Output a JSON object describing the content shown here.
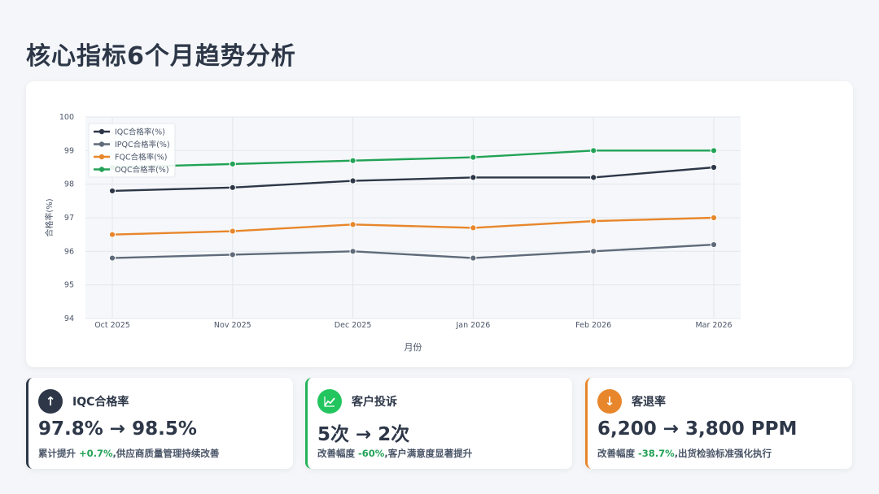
{
  "page": {
    "title": "核心指标6个月趋势分析"
  },
  "chart_data": {
    "type": "line",
    "x": [
      "Oct 2025",
      "Nov 2025",
      "Dec 2025",
      "Jan 2026",
      "Feb 2026",
      "Mar 2026"
    ],
    "series": [
      {
        "name": "IQC合格率(%)",
        "values": [
          97.8,
          97.9,
          98.1,
          98.2,
          98.2,
          98.5
        ],
        "color": "#2d3748"
      },
      {
        "name": "IPQC合格率(%)",
        "values": [
          95.8,
          95.9,
          96.0,
          95.8,
          96.0,
          96.2
        ],
        "color": "#5f6b7a"
      },
      {
        "name": "FQC合格率(%)",
        "values": [
          96.5,
          96.6,
          96.8,
          96.7,
          96.9,
          97.0
        ],
        "color": "#e8862b"
      },
      {
        "name": "OQC合格率(%)",
        "values": [
          98.5,
          98.6,
          98.7,
          98.8,
          99.0,
          99.0
        ],
        "color": "#22a356"
      }
    ],
    "xlabel": "月份",
    "ylabel": "合格率(%)",
    "ylim": [
      94,
      100
    ],
    "yticks": [
      "94",
      "95",
      "96",
      "97",
      "98",
      "99",
      "100"
    ],
    "grid": true,
    "legend": "top-left"
  },
  "kpis": [
    {
      "icon": "arrow-up-icon",
      "glyph": "↑",
      "label": "IQC合格率",
      "value": "97.8% → 98.5%",
      "note_prefix": "累计提升 ",
      "note_highlight": "+0.7%",
      "note_suffix": ",供应商质量管理持续改善"
    },
    {
      "icon": "chart-line-icon",
      "glyph": "📈",
      "label": "客户投诉",
      "value": "5次 → 2次",
      "note_prefix": "改善幅度 ",
      "note_highlight": "-60%",
      "note_suffix": ",客户满意度显著提升"
    },
    {
      "icon": "arrow-down-icon",
      "glyph": "↓",
      "label": "客退率",
      "value": "6,200 → 3,800 PPM",
      "note_prefix": "改善幅度 ",
      "note_highlight": "-38.7%",
      "note_suffix": ",出货检验标准强化执行"
    }
  ]
}
